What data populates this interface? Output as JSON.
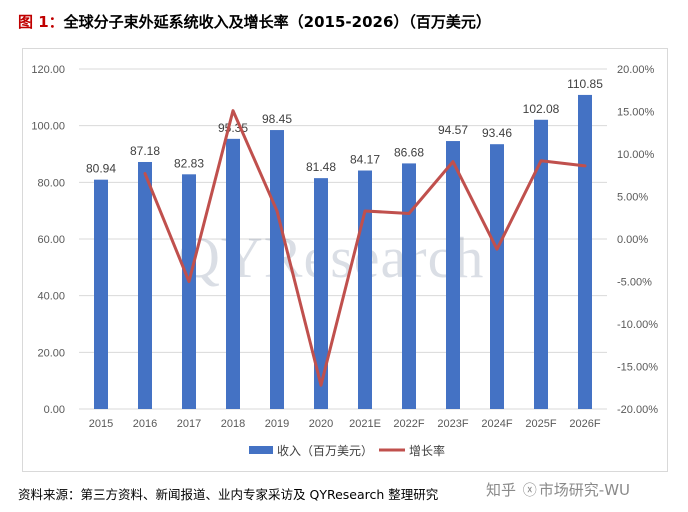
{
  "title_prefix": "图 1：",
  "title": "全球分子束外延系统收入及增长率（2015-2026）（百万美元）",
  "source_text": "资料来源：第三方资料、新闻报道、业内专家采访及 QYResearch 整理研究",
  "credit_left": "知乎",
  "credit_icon": "at-icon",
  "credit_right": "市场研究-WU",
  "watermark": "QYResearch",
  "colors": {
    "bar": "#4472c4",
    "line": "#c0504d",
    "title_prefix": "#c00000",
    "grid": "#d9d9d9"
  },
  "chart_data": {
    "type": "bar",
    "categories": [
      "2015",
      "2016",
      "2017",
      "2018",
      "2019",
      "2020",
      "2021E",
      "2022F",
      "2023F",
      "2024F",
      "2025F",
      "2026F"
    ],
    "series": [
      {
        "name": "收入（百万美元）",
        "type": "bar",
        "axis": "left",
        "values": [
          80.94,
          87.18,
          82.83,
          95.35,
          98.45,
          81.48,
          84.17,
          86.68,
          94.57,
          93.46,
          102.08,
          110.85
        ],
        "labels": [
          "80.94",
          "87.18",
          "82.83",
          "95.35",
          "98.45",
          "81.48",
          "84.17",
          "86.68",
          "94.57",
          "93.46",
          "102.08",
          "110.85"
        ]
      },
      {
        "name": "增长率",
        "type": "line",
        "axis": "right",
        "values": [
          null,
          7.7,
          -5.0,
          15.1,
          3.3,
          -17.2,
          3.3,
          3.0,
          9.1,
          -1.2,
          9.2,
          8.6
        ]
      }
    ],
    "y_left": {
      "min": 0,
      "max": 120,
      "step": 20,
      "tick_labels": [
        "0.00",
        "20.00",
        "40.00",
        "60.00",
        "80.00",
        "100.00",
        "120.00"
      ]
    },
    "y_right": {
      "min": -20,
      "max": 20,
      "step": 5,
      "tick_labels": [
        "-20.00%",
        "-15.00%",
        "-10.00%",
        "-5.00%",
        "0.00%",
        "5.00%",
        "10.00%",
        "15.00%",
        "20.00%"
      ]
    },
    "grid": true,
    "legend": "bottom"
  }
}
